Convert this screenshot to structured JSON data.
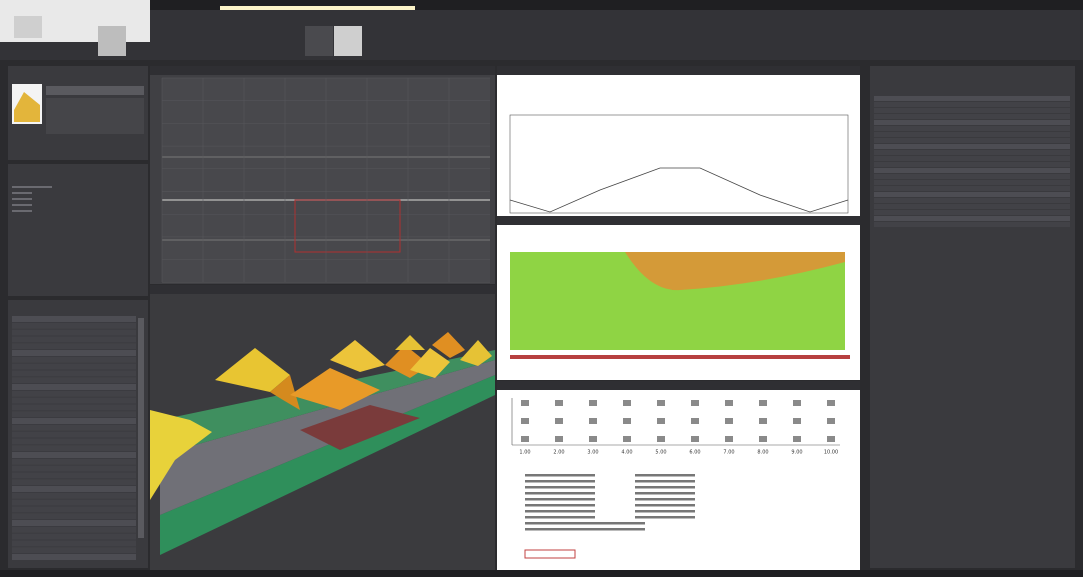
{
  "results": {
    "x_labels": [
      "1.00",
      "2.00",
      "3.00",
      "4.00",
      "5.00",
      "6.00",
      "7.00",
      "8.00",
      "9.00",
      "10.00"
    ]
  }
}
